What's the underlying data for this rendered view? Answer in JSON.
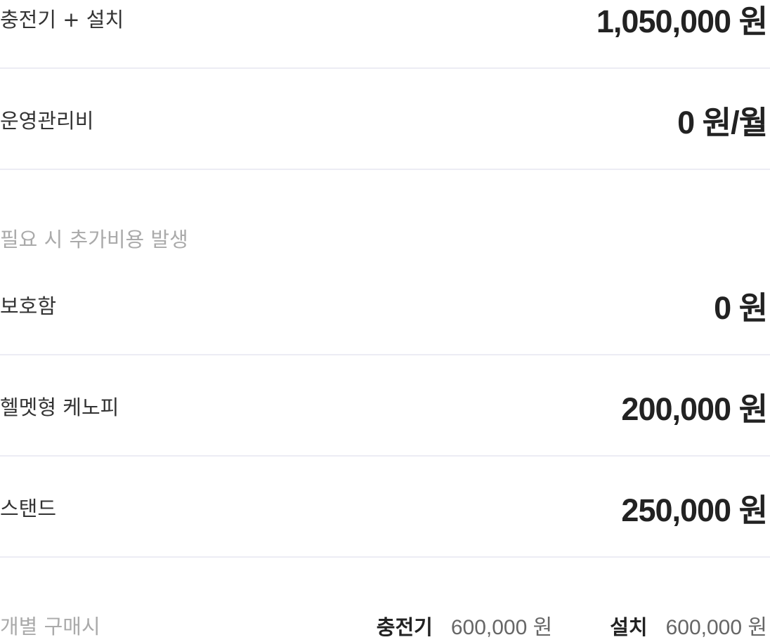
{
  "rows": [
    {
      "label": "충전기 + 설치",
      "value": "1,050,000 원"
    },
    {
      "label": "운영관리비",
      "value": "0 원/월"
    }
  ],
  "note": "필요 시 추가비용 발생",
  "options": [
    {
      "label": "보호함",
      "value": "0 원"
    },
    {
      "label": "헬멧형 케노피",
      "value": "200,000 원"
    },
    {
      "label": "스탠드",
      "value": "250,000 원"
    }
  ],
  "individual": {
    "title": "개별 구매시",
    "items": [
      {
        "name": "충전기",
        "price": "600,000 원"
      },
      {
        "name": "설치",
        "price": "600,000 원"
      }
    ]
  }
}
